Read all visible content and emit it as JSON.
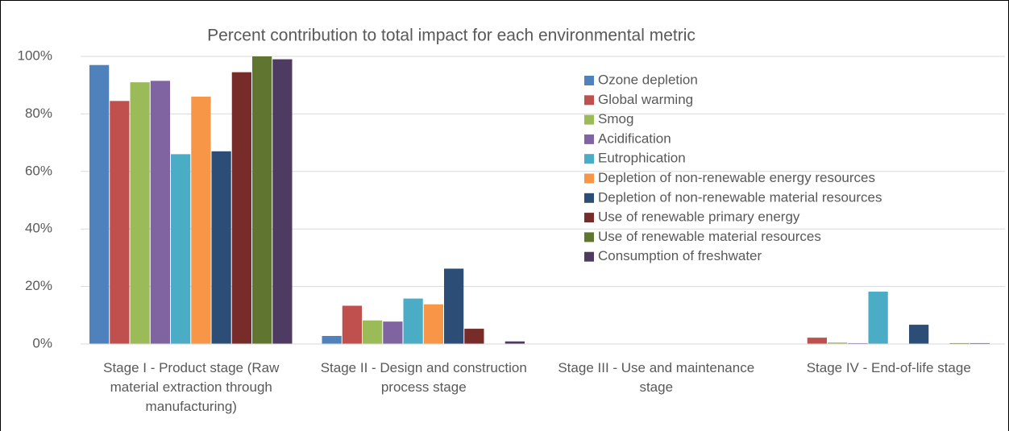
{
  "chart_data": {
    "type": "bar",
    "title": "Percent contribution to total impact for each environmental metric",
    "categories": [
      "Stage I - Product stage (Raw material extraction through manufacturing)",
      "Stage II - Design and construction process stage",
      "Stage III - Use and maintenance stage",
      "Stage IV - End-of-life stage"
    ],
    "series": [
      {
        "name": "Ozone depletion",
        "color": "#4f81bd",
        "values": [
          97,
          2.8,
          0,
          0
        ]
      },
      {
        "name": "Global warming",
        "color": "#c0504d",
        "values": [
          84.5,
          13.3,
          0,
          2.2
        ]
      },
      {
        "name": "Smog",
        "color": "#9bbb59",
        "values": [
          91,
          8.2,
          0,
          0.5
        ]
      },
      {
        "name": "Acidification",
        "color": "#8064a2",
        "values": [
          91.5,
          7.8,
          0,
          0.3
        ]
      },
      {
        "name": "Eutrophication",
        "color": "#4bacc6",
        "values": [
          66,
          15.8,
          0,
          18.2
        ]
      },
      {
        "name": "Depletion of non-renewable energy resources",
        "color": "#f79646",
        "values": [
          86,
          13.8,
          0,
          0
        ]
      },
      {
        "name": "Depletion of non-renewable material resources",
        "color": "#2c4d75",
        "values": [
          67,
          26.2,
          0,
          6.7
        ]
      },
      {
        "name": "Use of renewable primary energy",
        "color": "#772c2a",
        "values": [
          94.5,
          5.3,
          0,
          0
        ]
      },
      {
        "name": "Use of renewable material resources",
        "color": "#5f7530",
        "values": [
          100,
          0,
          0,
          0.3
        ]
      },
      {
        "name": "Consumption of freshwater",
        "color": "#4d3b62",
        "values": [
          99,
          0.9,
          0,
          0.3
        ]
      }
    ],
    "ylim": [
      0,
      100
    ],
    "yticks": [
      {
        "value": 0,
        "label": "0%"
      },
      {
        "value": 20,
        "label": "20%"
      },
      {
        "value": 40,
        "label": "40%"
      },
      {
        "value": 60,
        "label": "60%"
      },
      {
        "value": 80,
        "label": "80%"
      },
      {
        "value": 100,
        "label": "100%"
      }
    ],
    "grid": true
  }
}
